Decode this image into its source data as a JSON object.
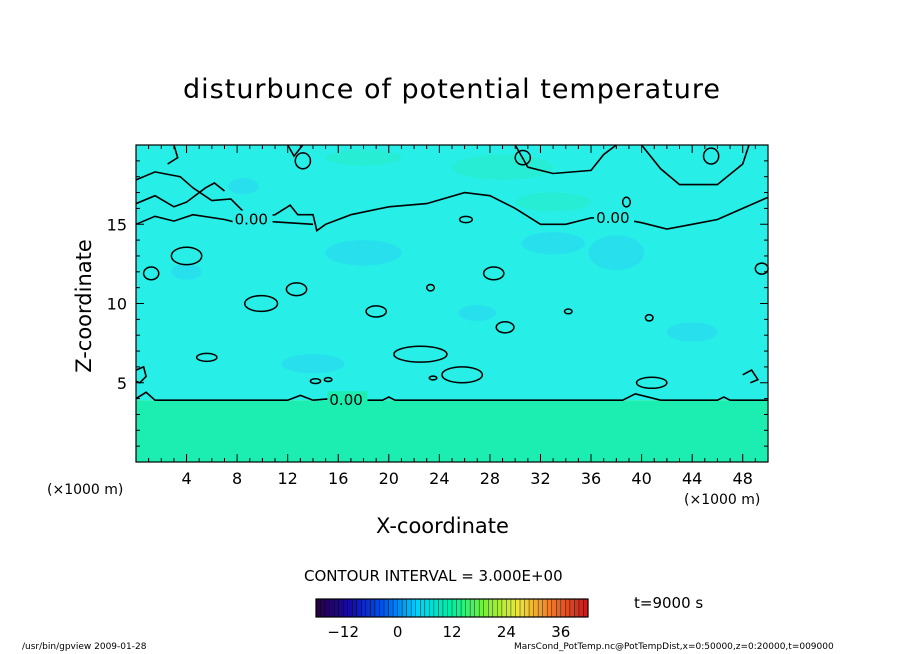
{
  "chart_data": {
    "type": "heatmap",
    "title": "disturbunce of potential temperature",
    "xlabel": "X-coordinate",
    "ylabel": "Z-coordinate",
    "x_unit_left": "(×1000 m)",
    "x_unit_right": "(×1000 m)",
    "xlim": [
      0,
      50
    ],
    "ylim": [
      0,
      20
    ],
    "x_ticks": [
      4,
      8,
      12,
      16,
      20,
      24,
      28,
      32,
      36,
      40,
      44,
      48
    ],
    "y_ticks": [
      5,
      10,
      15
    ],
    "contour_label": "0.00",
    "contour_interval": "CONTOUR INTERVAL = 3.000E+00",
    "colorbar": {
      "min": -18,
      "max": 42,
      "ticks": [
        -12,
        0,
        12,
        24,
        36
      ]
    },
    "time_label": "t=9000 s",
    "footer_left": "/usr/bin/gpview   2009-01-28",
    "footer_right": "MarsCond_PotTemp.nc@PotTempDist,x=0:50000,z=0:20000,t=009000"
  },
  "colors": {
    "field_upper": "#27eee6",
    "field_lower": "#1ceeb2",
    "cool_patch": "#2ad5f2",
    "warm_patch": "#28ecc8",
    "contour": "#000000"
  }
}
